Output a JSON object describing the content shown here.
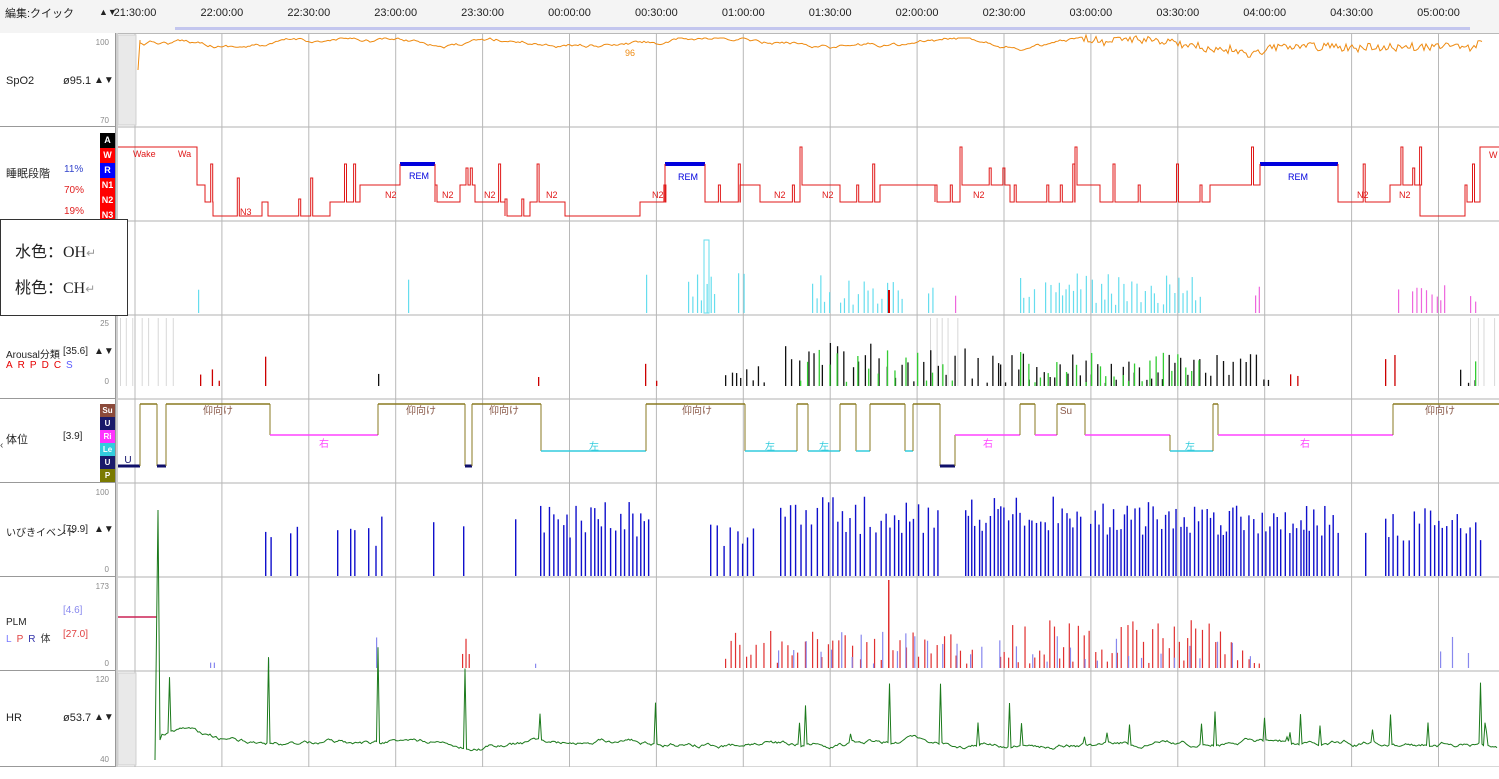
{
  "header": {
    "edit_label": "編集:クイック",
    "nav_arrows": "▲▼",
    "times": [
      "21:30:00",
      "22:00:00",
      "22:30:00",
      "23:00:00",
      "23:30:00",
      "00:00:00",
      "00:30:00",
      "01:00:00",
      "01:30:00",
      "02:00:00",
      "02:30:00",
      "03:00:00",
      "03:30:00",
      "04:00:00",
      "04:30:00",
      "05:00:00"
    ]
  },
  "legend_box": {
    "line1": "水色：OH",
    "line2": "桃色：CH",
    "return_mark": "↵"
  },
  "channels": {
    "spo2": {
      "name": "SpO2",
      "value": "ø95.1",
      "scale_top": "100",
      "scale_bottom": "70",
      "inline_marker": "96",
      "arrows": "▲▼"
    },
    "sleep": {
      "name": "睡眠段階",
      "stats": [
        "11%",
        "70%",
        "19%"
      ],
      "stage_keys": [
        {
          "label": "A",
          "color": "#000000"
        },
        {
          "label": "W",
          "color": "#ff0000"
        },
        {
          "label": "R",
          "color": "#0000ff"
        },
        {
          "label": "N1",
          "color": "#ff0000"
        },
        {
          "label": "N2",
          "color": "#ff0000"
        },
        {
          "label": "N3",
          "color": "#ff0000"
        }
      ],
      "labels": {
        "wake": "Wake",
        "wa": "Wa",
        "n3": "N3",
        "n2": "N2",
        "rem": "REM",
        "w_right": "W"
      }
    },
    "arousal": {
      "name": "Arousal分類",
      "value": "[35.6]",
      "arrows": "▲▼",
      "letters": [
        "A",
        "R",
        "P",
        "D",
        "C",
        "S"
      ],
      "letter_colors": [
        "#e60000",
        "#e60000",
        "#e60000",
        "#e60000",
        "#e60000",
        "#5a5aff"
      ],
      "scale_top": "25",
      "scale_bottom": "0"
    },
    "position": {
      "name": "体位",
      "value": "[3.9]",
      "keys": [
        {
          "label": "Su",
          "color": "#8b4a3a"
        },
        {
          "label": "U",
          "color": "#1a1a6a"
        },
        {
          "label": "Ri",
          "color": "#ff33ff"
        },
        {
          "label": "Le",
          "color": "#33ccdd"
        },
        {
          "label": "U",
          "color": "#1a1a6a"
        },
        {
          "label": "P",
          "color": "#7a7a00"
        }
      ],
      "labels": {
        "supine": "仰向け",
        "right": "右",
        "left": "左",
        "su": "Su",
        "u": "U"
      }
    },
    "snore": {
      "name": "いびきイベント",
      "value": "[79.9]",
      "arrows": "▲▼",
      "scale_top": "100",
      "scale_bottom": "0"
    },
    "plm": {
      "name": "PLM",
      "value_top": "[4.6]",
      "value_bottom": "[27.0]",
      "letters": [
        "L",
        "P",
        "R",
        "体"
      ],
      "letter_colors": [
        "#7777ff",
        "#e04040",
        "#3333aa",
        "#333333"
      ],
      "scale_top": "173",
      "scale_bottom": "0"
    },
    "hr": {
      "name": "HR",
      "value": "ø53.7",
      "arrows": "▲▼",
      "scale_top": "120",
      "scale_bottom": "40"
    }
  },
  "colors": {
    "spo2": "#ee8a10",
    "sleep": "#e01818",
    "rem": "#0000dd",
    "oh": "#66ddee",
    "ch": "#ee66dd",
    "snore": "#1010cc",
    "plm_r": "#e03030",
    "plm_l": "#8888ee",
    "hr": "#1c7a1c",
    "pos_supine": "#8a7a20",
    "pos_right": "#ff44ff",
    "pos_left": "#33ccdd",
    "pos_u": "#10106a"
  }
}
